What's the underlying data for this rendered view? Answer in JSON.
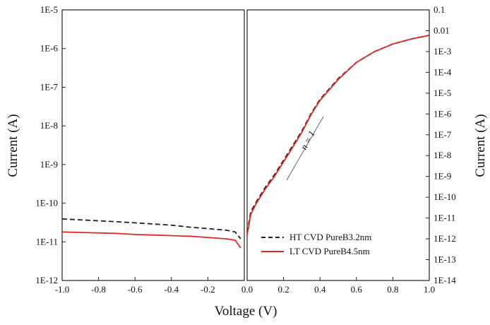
{
  "chart_data": [
    {
      "type": "line",
      "panel": "left",
      "xlim": [
        -1.0,
        0.0
      ],
      "ylim_log10": [
        -12,
        -5
      ],
      "yscale": "log",
      "ylabel": "Current (A)",
      "x_ticks": [
        "-1.0",
        "-0.8",
        "-0.6",
        "-0.4",
        "-0.2"
      ],
      "y_ticks": [
        "1E-12",
        "1E-11",
        "1E-10",
        "1E-9",
        "1E-8",
        "1E-7",
        "1E-6",
        "1E-5"
      ],
      "series": [
        {
          "name": "HT CVD PureB3.2nm",
          "color": "#222222",
          "dash": "dashed",
          "x": [
            -1.0,
            -0.9,
            -0.8,
            -0.7,
            -0.6,
            -0.5,
            -0.4,
            -0.3,
            -0.2,
            -0.1,
            -0.05,
            -0.02
          ],
          "y": [
            3.9e-11,
            3.7e-11,
            3.5e-11,
            3.3e-11,
            3.1e-11,
            2.9e-11,
            2.7e-11,
            2.4e-11,
            2.2e-11,
            2e-11,
            1.8e-11,
            1.2e-11
          ]
        },
        {
          "name": "LT CVD PureB4.5nm",
          "color": "#e02828",
          "dash": "solid",
          "x": [
            -1.0,
            -0.9,
            -0.8,
            -0.7,
            -0.6,
            -0.5,
            -0.4,
            -0.3,
            -0.2,
            -0.1,
            -0.05,
            -0.02
          ],
          "y": [
            1.8e-11,
            1.75e-11,
            1.7e-11,
            1.65e-11,
            1.55e-11,
            1.5e-11,
            1.45e-11,
            1.4e-11,
            1.3e-11,
            1.2e-11,
            1.1e-11,
            7e-12
          ]
        }
      ]
    },
    {
      "type": "line",
      "panel": "right",
      "xlim": [
        0.0,
        1.0
      ],
      "ylim_log10": [
        -14,
        -1
      ],
      "yscale": "log",
      "xlabel": "Voltage (V)",
      "ylabel": "Current (A)",
      "x_ticks": [
        "0.0",
        "0.2",
        "0.4",
        "0.6",
        "0.8",
        "1.0"
      ],
      "y_ticks": [
        "1E-14",
        "1E-13",
        "1E-12",
        "1E-11",
        "1E-10",
        "1E-9",
        "1E-8",
        "1E-7",
        "1E-6",
        "1E-5",
        "1E-4",
        "1E-3",
        "0.01",
        "0.1"
      ],
      "annotation": "n = 1",
      "legend_position": "bottom-right",
      "series": [
        {
          "name": "HT CVD PureB3.2nm",
          "color": "#222222",
          "dash": "dashed",
          "x": [
            0.0,
            0.02,
            0.05,
            0.1,
            0.15,
            0.2,
            0.25,
            0.3,
            0.35,
            0.4,
            0.5,
            0.6,
            0.7,
            0.8,
            0.9,
            1.0
          ],
          "y": [
            2e-12,
            2e-11,
            6e-11,
            3e-10,
            1.2e-09,
            6e-09,
            3e-08,
            1.5e-07,
            1e-06,
            5e-06,
            5e-05,
            0.0003,
            0.001,
            0.0023,
            0.004,
            0.006
          ]
        },
        {
          "name": "LT CVD PureB4.5nm",
          "color": "#e02828",
          "dash": "solid",
          "x": [
            0.0,
            0.02,
            0.05,
            0.1,
            0.15,
            0.2,
            0.25,
            0.3,
            0.35,
            0.4,
            0.5,
            0.6,
            0.7,
            0.8,
            0.9,
            1.0
          ],
          "y": [
            1.5e-12,
            1.5e-11,
            5e-11,
            2.5e-10,
            1e-09,
            5e-09,
            2.5e-08,
            1.3e-07,
            9e-07,
            4.5e-06,
            4.5e-05,
            0.0003,
            0.001,
            0.0023,
            0.004,
            0.006
          ]
        }
      ]
    }
  ]
}
